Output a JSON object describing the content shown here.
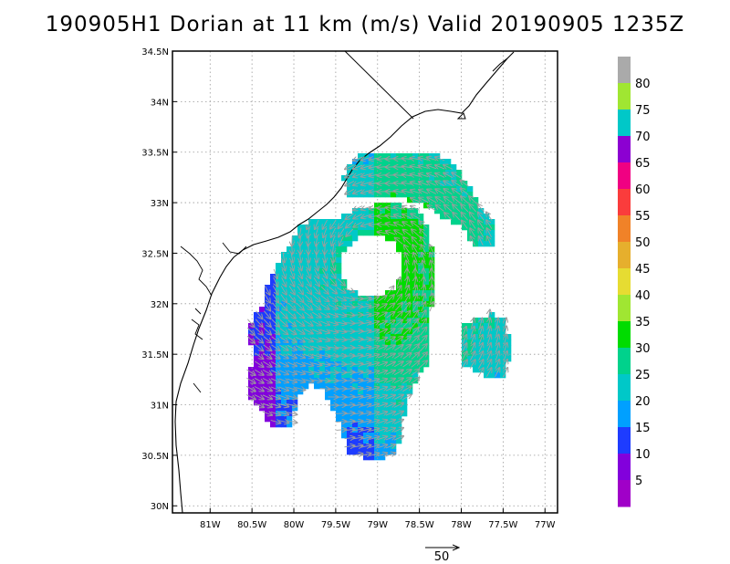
{
  "title": "190905H1 Dorian at 11 km (m/s) Valid 20190905 1235Z",
  "map": {
    "projection": "lat-lon",
    "lon_range": [
      -81.45,
      -76.85
    ],
    "lat_range": [
      29.93,
      34.5
    ],
    "lon_ticks": [
      "81W",
      "80.5W",
      "80W",
      "79.5W",
      "79W",
      "78.5W",
      "78W",
      "77.5W",
      "77W"
    ],
    "lon_values": [
      -81,
      -80.5,
      -80,
      -79.5,
      -79,
      -78.5,
      -78,
      -77.5,
      -77
    ],
    "lat_ticks": [
      "34.5N",
      "34N",
      "33.5N",
      "33N",
      "32.5N",
      "32N",
      "31.5N",
      "31N",
      "30.5N",
      "30N"
    ],
    "lat_values": [
      34.5,
      34,
      33.5,
      33,
      32.5,
      32,
      31.5,
      31,
      30.5,
      30
    ],
    "grid": "dotted",
    "storm_center": {
      "lon": -79.1,
      "lat": 32.4
    }
  },
  "colorbar": {
    "labels": [
      "5",
      "10",
      "15",
      "20",
      "25",
      "30",
      "35",
      "40",
      "45",
      "50",
      "55",
      "60",
      "65",
      "70",
      "75",
      "80"
    ],
    "colors": [
      "#a000c8",
      "#8200dc",
      "#1e3cff",
      "#00a0ff",
      "#00c8c8",
      "#00d28c",
      "#00dc00",
      "#a0e632",
      "#e6dc32",
      "#e6af2d",
      "#f08228",
      "#fa3c3c",
      "#f00082",
      "#8c00d2",
      "#00c8c8",
      "#a0e632",
      "#aaaaaa"
    ]
  },
  "vector_legend": {
    "label": "50",
    "units": "m/s"
  }
}
